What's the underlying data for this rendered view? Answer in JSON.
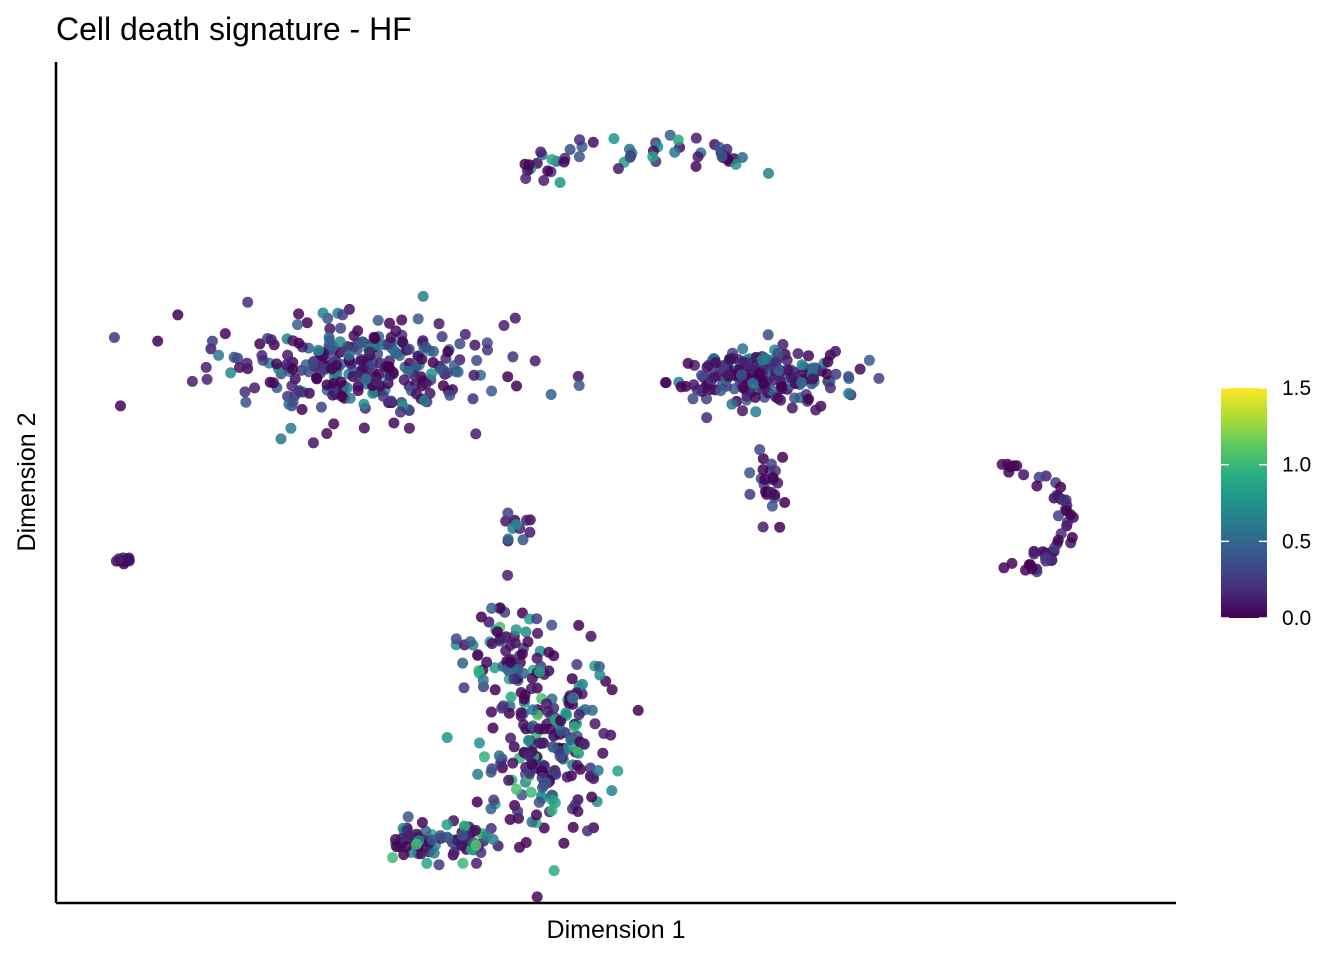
{
  "chart_data": {
    "type": "scatter",
    "title": "Cell death signature - HF",
    "xlabel": "Dimension 1",
    "ylabel": "Dimension 2",
    "x_ticks": "none",
    "y_ticks": "none",
    "grid": false,
    "colormap": "viridis",
    "colorbar": {
      "position": "right",
      "range": [
        0,
        1.5
      ],
      "ticks": [
        "0.0",
        "0.5",
        "1.0",
        "1.5"
      ],
      "tick_values": [
        0,
        0.5,
        1.0,
        1.5
      ]
    },
    "viridis_stops": [
      "#440154",
      "#472d7b",
      "#3b528b",
      "#2c728e",
      "#21918c",
      "#28ae80",
      "#5ec962",
      "#addc30",
      "#fde725"
    ],
    "clusters": [
      {
        "name": "left-small",
        "cx": 0.05,
        "cy": 0.41,
        "rx": 0.008,
        "ry": 0.006,
        "n": 14,
        "c_max": 0.6
      },
      {
        "name": "top-arc",
        "cx": 0.53,
        "cy": 0.91,
        "rx": 0.18,
        "ry": 0.06,
        "n": 55,
        "c_max": 0.9,
        "shape": "arc"
      },
      {
        "name": "left-big",
        "cx": 0.26,
        "cy": 0.65,
        "rx": 0.14,
        "ry": 0.07,
        "n": 300,
        "c_max": 0.8
      },
      {
        "name": "center-right",
        "cx": 0.63,
        "cy": 0.64,
        "rx": 0.09,
        "ry": 0.035,
        "n": 230,
        "c_max": 0.7
      },
      {
        "name": "center-tail",
        "cx": 0.64,
        "cy": 0.5,
        "rx": 0.02,
        "ry": 0.06,
        "n": 25,
        "c_max": 0.4
      },
      {
        "name": "center-small",
        "cx": 0.41,
        "cy": 0.45,
        "rx": 0.015,
        "ry": 0.025,
        "n": 12,
        "c_max": 0.8
      },
      {
        "name": "right-arc",
        "cx": 0.86,
        "cy": 0.46,
        "rx": 0.06,
        "ry": 0.09,
        "n": 50,
        "c_max": 0.3,
        "shape": "arc-right"
      },
      {
        "name": "bottom-J",
        "cx": 0.37,
        "cy": 0.16,
        "rx": 0.14,
        "ry": 0.14,
        "n": 380,
        "c_max": 1.1,
        "shape": "J"
      }
    ]
  }
}
